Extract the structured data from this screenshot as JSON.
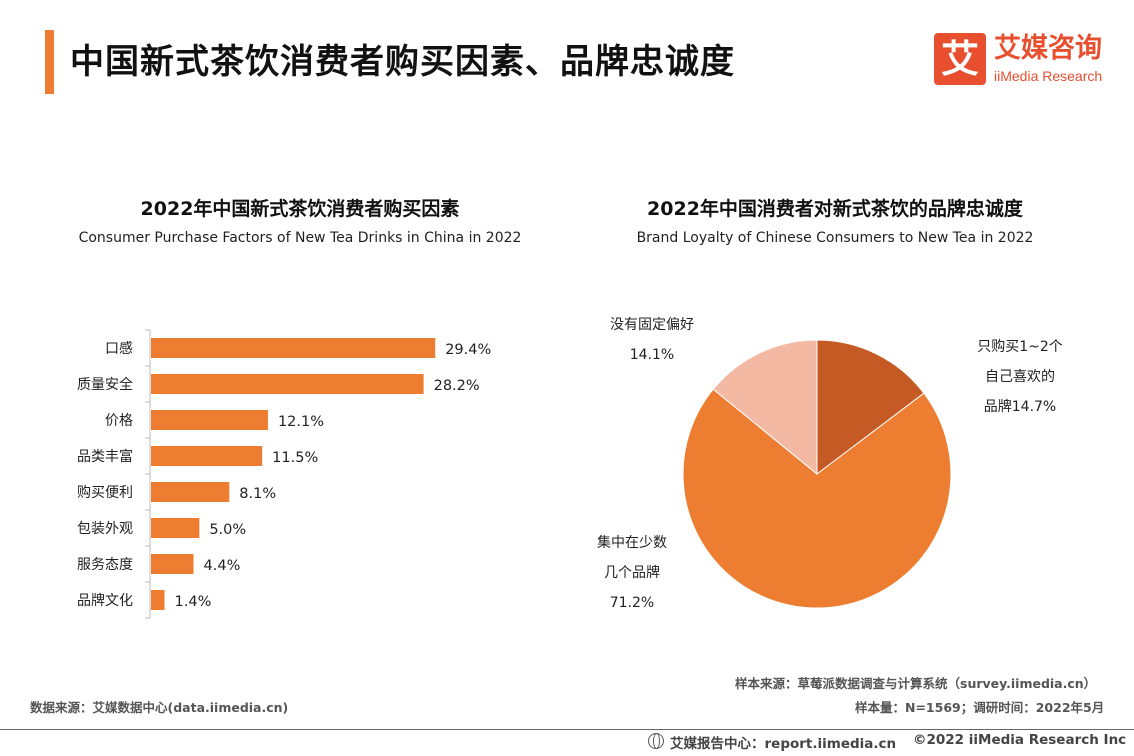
{
  "header": {
    "title": "中国新式茶饮消费者购买因素、品牌忠诚度",
    "logo_cn": "艾媒咨询",
    "logo_en": "iiMedia Research",
    "logo_mark": "艾"
  },
  "chart_data": [
    {
      "type": "bar",
      "title": "2022年中国新式茶饮消费者购买因素",
      "subtitle": "Consumer Purchase Factors of New Tea Drinks in China in 2022",
      "orientation": "horizontal",
      "categories": [
        "口感",
        "质量安全",
        "价格",
        "品类丰富",
        "购买便利",
        "包装外观",
        "服务态度",
        "品牌文化"
      ],
      "values": [
        29.4,
        28.2,
        12.1,
        11.5,
        8.1,
        5.0,
        4.4,
        1.4
      ],
      "labels": [
        "29.4%",
        "28.2%",
        "12.1%",
        "11.5%",
        "8.1%",
        "5.0%",
        "4.4%",
        "1.4%"
      ],
      "unit": "%",
      "color": "#ed7d31",
      "xlim": [
        0,
        30
      ]
    },
    {
      "type": "pie",
      "title": "2022年中国消费者对新式茶饮的品牌忠诚度",
      "subtitle": "Brand Loyalty of Chinese Consumers to New Tea in 2022",
      "slices": [
        {
          "label_lines": [
            "只购买1~2个",
            "自己喜欢的",
            "品牌14.7%"
          ],
          "value": 14.7,
          "color": "#c55a24"
        },
        {
          "label_lines": [
            "集中在少数",
            "几个品牌",
            "71.2%"
          ],
          "value": 71.2,
          "color": "#ed7d31"
        },
        {
          "label_lines": [
            "没有固定偏好",
            "14.1%"
          ],
          "value": 14.1,
          "color": "#f4b9a3"
        }
      ]
    }
  ],
  "footer": {
    "sample_source": "样本来源：草莓派数据调查与计算系统（survey.iimedia.cn）",
    "data_source": "数据来源：艾媒数据中心(data.iimedia.cn)",
    "sample_info": "样本量：N=1569；调研时间：2022年5月",
    "report_center": "艾媒报告中心：report.iimedia.cn",
    "copyright": "©2022  iiMedia Research  Inc"
  }
}
